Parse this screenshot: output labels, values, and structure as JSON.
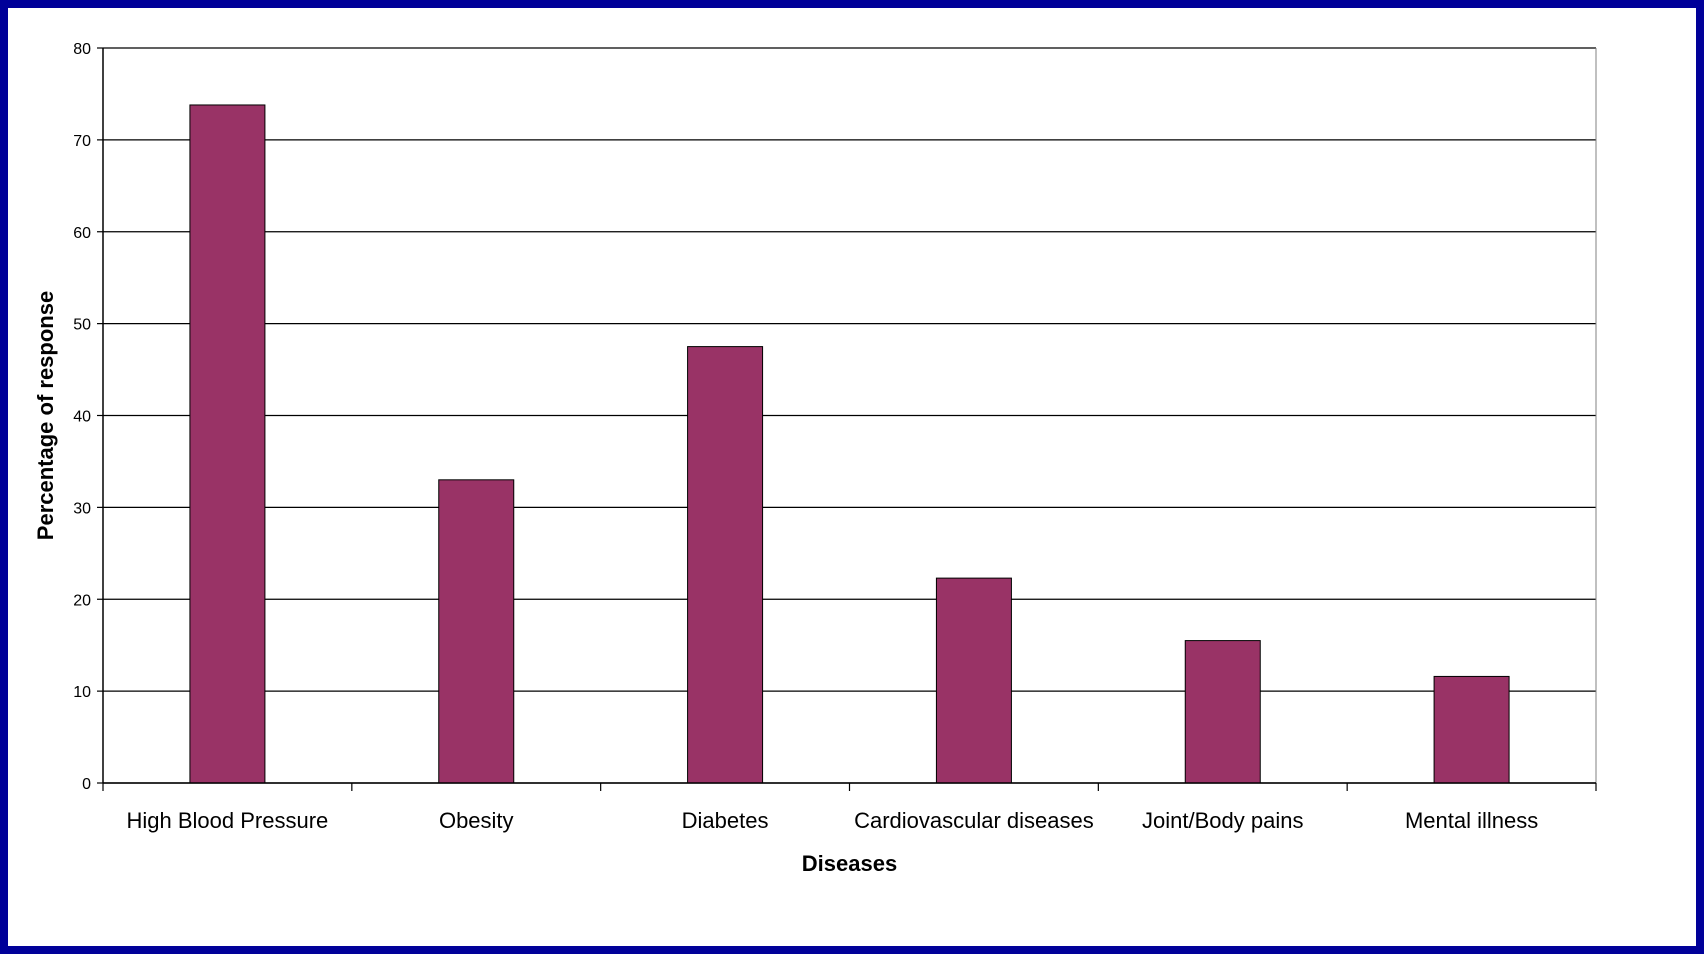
{
  "chart_data": {
    "type": "bar",
    "title": "",
    "xlabel": "Diseases",
    "ylabel": "Percentage of response",
    "categories": [
      "High Blood Pressure",
      "Obesity",
      "Diabetes",
      "Cardiovascular diseases",
      "Joint/Body pains",
      "Mental illness"
    ],
    "values": [
      73.8,
      33.0,
      47.5,
      22.3,
      15.5,
      11.6
    ],
    "ylim": [
      0,
      80
    ],
    "yticks": [
      "0",
      "10",
      "20",
      "30",
      "40",
      "50",
      "60",
      "70",
      "80"
    ],
    "grid": true,
    "legend": "none",
    "colors": {
      "bar": "#993366",
      "bar_border": "#000000",
      "frame": "#000099",
      "gridline": "#000000"
    }
  }
}
